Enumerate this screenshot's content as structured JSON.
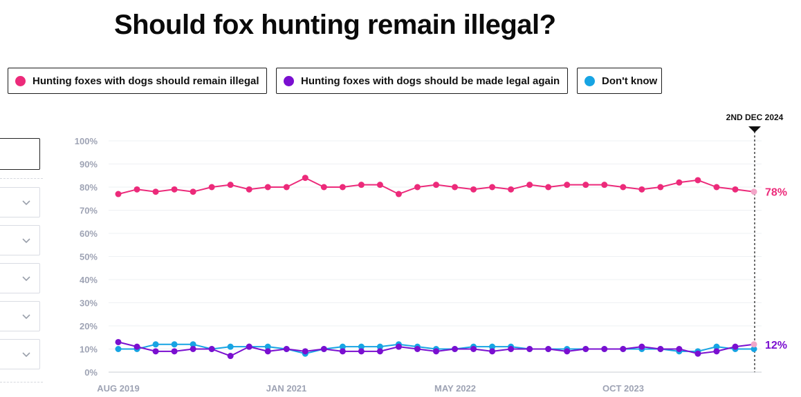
{
  "title": "Should fox hunting remain illegal?",
  "legend": [
    {
      "label": "Hunting foxes with dogs should remain illegal",
      "color": "#ec2a7a"
    },
    {
      "label": "Hunting foxes with dogs should be made legal again",
      "color": "#7a0fd0"
    },
    {
      "label": "Don't know",
      "color": "#17a4e3"
    }
  ],
  "marker_label": "2ND DEC 2024",
  "end_labels": {
    "remain_illegal": "78%",
    "legal_again": "12%"
  },
  "chart_data": {
    "type": "line",
    "title": "Should fox hunting remain illegal?",
    "y_ticks": [
      "100%",
      "90%",
      "80%",
      "70%",
      "60%",
      "50%",
      "40%",
      "30%",
      "20%",
      "10%",
      "0%"
    ],
    "ylim": [
      0,
      100
    ],
    "x_tick_labels": [
      "AUG 2019",
      "JAN 2021",
      "MAY 2022",
      "OCT 2023"
    ],
    "grid": true,
    "series": [
      {
        "name": "Hunting foxes with dogs should remain illegal",
        "color": "#ec2a7a",
        "values": [
          77,
          79,
          78,
          79,
          78,
          80,
          81,
          79,
          80,
          80,
          84,
          80,
          80,
          81,
          81,
          77,
          80,
          81,
          80,
          79,
          80,
          79,
          81,
          80,
          81,
          81,
          81,
          80,
          79,
          80,
          82,
          83,
          80,
          79,
          78
        ]
      },
      {
        "name": "Hunting foxes with dogs should be made legal again",
        "color": "#7a0fd0",
        "values": [
          13,
          11,
          9,
          9,
          10,
          10,
          7,
          11,
          9,
          10,
          9,
          10,
          9,
          9,
          9,
          11,
          10,
          9,
          10,
          10,
          9,
          10,
          10,
          10,
          9,
          10,
          10,
          10,
          11,
          10,
          10,
          8,
          9,
          11,
          12
        ]
      },
      {
        "name": "Don't know",
        "color": "#17a4e3",
        "values": [
          10,
          10,
          12,
          12,
          12,
          10,
          11,
          11,
          11,
          10,
          8,
          10,
          11,
          11,
          11,
          12,
          11,
          10,
          10,
          11,
          11,
          11,
          10,
          10,
          10,
          10,
          10,
          10,
          10,
          10,
          9,
          9,
          11,
          10,
          10
        ]
      }
    ]
  }
}
